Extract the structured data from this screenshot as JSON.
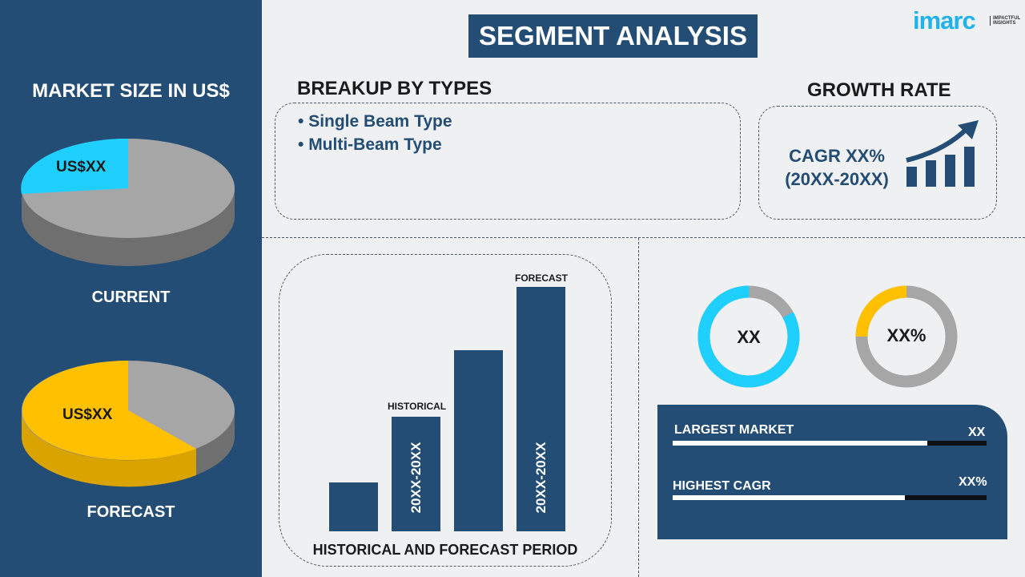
{
  "title": "SEGMENT ANALYSIS",
  "logo": {
    "text": "imarc",
    "tagline": "IMPACTFUL INSIGHTS"
  },
  "left": {
    "heading": "MARKET SIZE IN US$",
    "current": {
      "label": "CURRENT",
      "value": "US$XX",
      "slice_fraction": 0.2,
      "color": "#1fd0ff"
    },
    "forecast": {
      "label": "FORECAST",
      "value": "US$XX",
      "slice_fraction": 0.6,
      "color": "#ffc000"
    }
  },
  "breakup": {
    "heading": "BREAKUP BY TYPES",
    "items": [
      "Single Beam Type",
      "Multi-Beam Type"
    ]
  },
  "growth": {
    "heading": "GROWTH RATE",
    "cagr": "CAGR XX%",
    "period": "(20XX-20XX)"
  },
  "chart": {
    "footer": "HISTORICAL AND FORECAST PERIOD",
    "historical_label": "HISTORICAL",
    "forecast_label": "FORECAST",
    "historical_period": "20XX-20XX",
    "forecast_period": "20XX-20XX",
    "values": [
      20,
      47,
      74,
      100
    ]
  },
  "donuts": [
    {
      "label": "XX",
      "fraction": 0.83,
      "color": "#1fd0ff"
    },
    {
      "label": "XX%",
      "fraction": 0.25,
      "color": "#ffc000"
    }
  ],
  "stats": [
    {
      "label": "LARGEST MARKET",
      "value": "XX",
      "fraction": 0.81
    },
    {
      "label": "HIGHEST CAGR",
      "value": "XX%",
      "fraction": 0.74
    }
  ],
  "colors": {
    "navy": "#234d74",
    "cyan": "#1fd0ff",
    "yellow": "#ffc000",
    "gray": "#a6a6a6"
  }
}
